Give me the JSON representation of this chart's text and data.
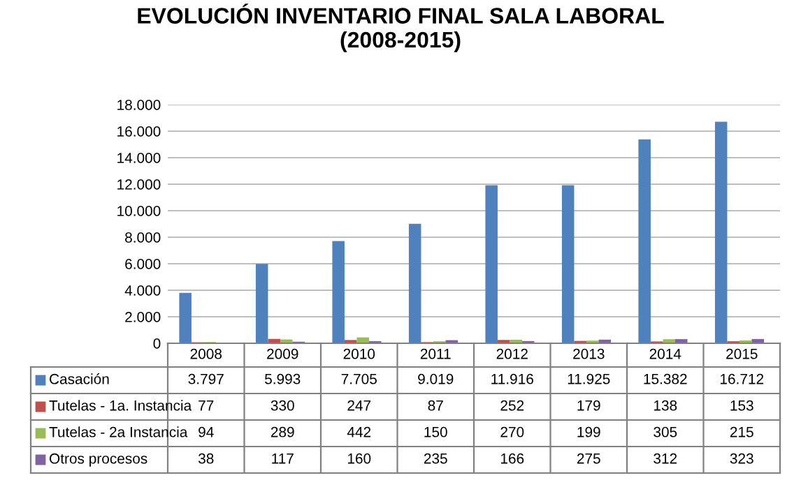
{
  "chart_data": {
    "type": "bar",
    "title": "EVOLUCIÓN INVENTARIO FINAL SALA LABORAL\n(2008-2015)",
    "categories": [
      "2008",
      "2009",
      "2010",
      "2011",
      "2012",
      "2013",
      "2014",
      "2015"
    ],
    "series": [
      {
        "name": "Casación",
        "color": "#4f81bd",
        "values": [
          3797,
          5993,
          7705,
          9019,
          11916,
          11925,
          15382,
          16712
        ],
        "value_labels": [
          "3.797",
          "5.993",
          "7.705",
          "9.019",
          "11.916",
          "11.925",
          "15.382",
          "16.712"
        ]
      },
      {
        "name": "Tutelas - 1a. Instancia",
        "color": "#c0504d",
        "values": [
          77,
          330,
          247,
          87,
          252,
          179,
          138,
          153
        ],
        "value_labels": [
          "77",
          "330",
          "247",
          "87",
          "252",
          "179",
          "138",
          "153"
        ]
      },
      {
        "name": "Tutelas - 2a Instancia",
        "color": "#9bbb59",
        "values": [
          94,
          289,
          442,
          150,
          270,
          199,
          305,
          215
        ],
        "value_labels": [
          "94",
          "289",
          "442",
          "150",
          "270",
          "199",
          "305",
          "215"
        ]
      },
      {
        "name": "Otros procesos",
        "color": "#8064a2",
        "values": [
          38,
          117,
          160,
          235,
          166,
          275,
          312,
          323
        ],
        "value_labels": [
          "38",
          "117",
          "160",
          "235",
          "166",
          "275",
          "312",
          "323"
        ]
      }
    ],
    "ylim": [
      0,
      18000
    ],
    "yticks": [
      0,
      {
        "value": 2000,
        "label": "2.000"
      },
      {
        "value": 4000,
        "label": "4.000"
      },
      {
        "value": 6000,
        "label": "6.000"
      },
      {
        "value": 8000,
        "label": "8.000"
      },
      {
        "value": 10000,
        "label": "10.000"
      },
      {
        "value": 12000,
        "label": "12.000"
      },
      {
        "value": 14000,
        "label": "14.000"
      },
      {
        "value": 16000,
        "label": "16.000"
      },
      {
        "value": 18000,
        "label": "18.000"
      }
    ],
    "grid": "y",
    "legend": "bottom"
  }
}
